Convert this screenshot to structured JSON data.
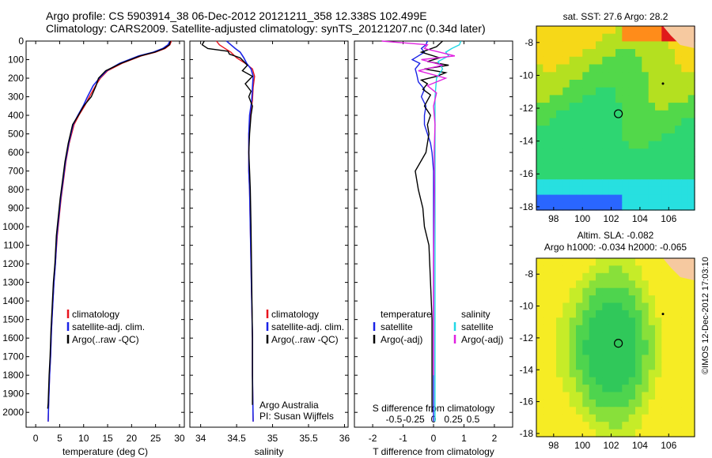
{
  "header": {
    "title_line1": "Argo profile: CS 5903914_38 06-Dec-2012 20121211_358 12.338S 102.499E",
    "title_line2": "Climatology: CARS2009. Satellite-adjusted climatology: synTS_20121207.nc (0.34d later)"
  },
  "colors": {
    "climatology": "#e8141e",
    "satellite": "#1a23e6",
    "argo": "#000000",
    "salinity_satellite": "#22d8e6",
    "salinity_argo": "#e020e0"
  },
  "chart_data": [
    {
      "type": "line",
      "panel": "temperature",
      "xlabel": "temperature (deg C)",
      "ylabel": "",
      "xlim": [
        -2,
        31
      ],
      "ylim": [
        2080,
        0
      ],
      "xticks": [
        0,
        5,
        10,
        15,
        20,
        25,
        30
      ],
      "yticks": [
        0,
        100,
        200,
        300,
        400,
        500,
        600,
        700,
        800,
        900,
        1000,
        1100,
        1200,
        1300,
        1400,
        1500,
        1600,
        1700,
        1800,
        1900,
        2000
      ],
      "legend": [
        "climatology",
        "satellite-adj. clim.",
        "Argo(..raw -QC)"
      ],
      "legend_position": "lower-center",
      "series": [
        {
          "name": "climatology",
          "x": [
            28.3,
            28.0,
            27.0,
            25.0,
            22.0,
            18.0,
            15.0,
            13.5,
            12.5,
            11.2,
            10.2,
            9.0,
            8.0,
            7.0,
            6.3,
            5.8,
            5.3,
            4.9,
            4.5,
            4.1,
            3.8,
            3.5,
            3.3,
            3.1,
            2.9,
            2.7,
            2.6
          ],
          "y": [
            0,
            20,
            40,
            60,
            80,
            120,
            160,
            200,
            240,
            300,
            350,
            400,
            450,
            550,
            650,
            750,
            850,
            950,
            1050,
            1200,
            1300,
            1450,
            1550,
            1700,
            1800,
            1950,
            2050
          ]
        },
        {
          "name": "satellite-adj. clim.",
          "x": [
            28.0,
            27.6,
            26.5,
            24.5,
            21.5,
            17.5,
            14.8,
            13.3,
            12.0,
            10.8,
            9.9,
            8.8,
            7.8,
            6.9,
            6.2,
            5.7,
            5.2,
            4.8,
            4.4,
            4.1,
            3.8,
            3.5,
            3.3,
            3.1,
            2.9,
            2.7,
            2.6
          ],
          "y": [
            0,
            20,
            40,
            60,
            80,
            120,
            160,
            200,
            240,
            300,
            350,
            400,
            450,
            550,
            650,
            750,
            850,
            950,
            1050,
            1200,
            1300,
            1450,
            1550,
            1700,
            1800,
            1950,
            2050
          ]
        },
        {
          "name": "Argo(..raw -QC)",
          "x": [
            28.1,
            27.9,
            26.8,
            24.8,
            21.8,
            17.8,
            14.6,
            13.1,
            12.6,
            11.6,
            10.0,
            8.9,
            7.7,
            6.8,
            6.1,
            5.6,
            5.1,
            4.7,
            4.3,
            4.0,
            3.7,
            3.4,
            3.2,
            3.0,
            2.8,
            2.6,
            2.5
          ],
          "y": [
            0,
            20,
            40,
            60,
            80,
            120,
            160,
            200,
            240,
            300,
            350,
            400,
            450,
            550,
            650,
            750,
            850,
            950,
            1050,
            1200,
            1300,
            1450,
            1550,
            1700,
            1800,
            1950,
            1980
          ]
        }
      ]
    },
    {
      "type": "line",
      "panel": "salinity",
      "xlabel": "salinity",
      "xlim": [
        33.85,
        36.05
      ],
      "ylim": [
        2080,
        0
      ],
      "xticks": [
        34,
        34.5,
        35,
        35.5,
        36
      ],
      "legend": [
        "climatology",
        "satellite-adj. clim.",
        "Argo(..raw -QC)"
      ],
      "legend_position": "lower-center",
      "annotation_line1": "Argo Australia",
      "annotation_line2": "PI: Susan Wijffels",
      "series": [
        {
          "name": "climatology",
          "x": [
            34.22,
            34.26,
            34.34,
            34.42,
            34.5,
            34.62,
            34.72,
            34.75,
            34.73,
            34.72,
            34.69,
            34.67,
            34.67,
            34.67,
            34.68,
            34.69,
            34.7,
            34.71,
            34.72,
            34.72,
            34.73
          ],
          "y": [
            0,
            20,
            40,
            60,
            90,
            120,
            150,
            190,
            250,
            320,
            400,
            500,
            600,
            700,
            800,
            1000,
            1200,
            1400,
            1600,
            1800,
            2050
          ]
        },
        {
          "name": "satellite-adj. clim.",
          "x": [
            34.36,
            34.42,
            34.48,
            34.55,
            34.6,
            34.64,
            34.7,
            34.73,
            34.72,
            34.71,
            34.68,
            34.67,
            34.67,
            34.67,
            34.68,
            34.69,
            34.7,
            34.71,
            34.72,
            34.72,
            34.73
          ],
          "y": [
            0,
            20,
            40,
            60,
            90,
            120,
            150,
            190,
            250,
            320,
            400,
            500,
            600,
            700,
            800,
            1000,
            1200,
            1400,
            1600,
            1800,
            2050
          ]
        },
        {
          "name": "Argo(..raw -QC)",
          "x": [
            34.05,
            34.02,
            34.1,
            34.38,
            34.4,
            34.55,
            34.6,
            34.65,
            34.58,
            34.72,
            34.62,
            34.7,
            34.67,
            34.72,
            34.7,
            34.68,
            34.67,
            34.68,
            34.69,
            34.7,
            34.71,
            34.72,
            34.72
          ],
          "y": [
            0,
            20,
            40,
            55,
            70,
            90,
            110,
            130,
            160,
            190,
            230,
            270,
            300,
            350,
            400,
            500,
            600,
            700,
            800,
            1000,
            1300,
            1600,
            1960
          ]
        }
      ]
    },
    {
      "type": "line",
      "panel": "difference",
      "xlabel": "T difference from climatology",
      "xlabel_top": "S difference from climatology",
      "xlim": [
        -2.6,
        2.6
      ],
      "ylim": [
        2080,
        0
      ],
      "xticks": [
        -2,
        -1,
        0,
        1,
        2
      ],
      "xtick_labels": [
        "-2",
        "-1",
        "0",
        "1",
        "2"
      ],
      "s_xticks": [
        -0.5,
        -0.25,
        0,
        0.25,
        0.5
      ],
      "s_xtick_labels": [
        "-0.5",
        "-0.25",
        "0",
        "0.25",
        "0.5"
      ],
      "legend_header_left": "temperature",
      "legend_header_right": "salinity",
      "legend": [
        "satellite",
        "Argo(-adj)",
        "satellite",
        "Argo(-adj)"
      ],
      "legend_position": "lower-center",
      "series": [
        {
          "name": "satellite",
          "quantity": "temperature",
          "x": [
            -0.2,
            -0.25,
            -0.4,
            -0.3,
            -0.5,
            -0.7,
            -0.45,
            -0.6,
            -0.55,
            -0.5,
            -0.3,
            -0.4,
            -0.25,
            -0.3,
            -0.3,
            -0.2,
            -0.1,
            -0.05,
            0,
            0,
            0
          ],
          "y": [
            0,
            20,
            40,
            60,
            80,
            100,
            120,
            150,
            180,
            220,
            260,
            300,
            350,
            400,
            450,
            500,
            550,
            600,
            700,
            900,
            2050
          ]
        },
        {
          "name": "Argo(-adj)",
          "quantity": "temperature",
          "x": [
            0.3,
            0.1,
            -0.4,
            0.2,
            -0.2,
            0.5,
            -0.3,
            0.4,
            0.1,
            -0.4,
            -0.2,
            -0.35,
            -0.1,
            -0.2,
            -0.3,
            -0.1,
            -0.2,
            -0.15,
            -0.25,
            -0.6,
            -0.5,
            -0.35,
            -0.3,
            -0.15,
            -0.1,
            -0.05,
            -0.05,
            -0.05
          ],
          "y": [
            0,
            30,
            60,
            90,
            110,
            130,
            150,
            170,
            190,
            210,
            230,
            260,
            290,
            320,
            350,
            400,
            450,
            500,
            600,
            700,
            800,
            900,
            1000,
            1100,
            1300,
            1500,
            1700,
            2000
          ]
        },
        {
          "name": "satellite",
          "quantity": "salinity",
          "x": [
            0.9,
            0.85,
            0.6,
            0.4,
            0.5,
            0.15,
            0.3,
            0.1,
            0.05,
            0.05,
            0.05,
            0.05
          ],
          "y": [
            0,
            20,
            40,
            60,
            80,
            110,
            150,
            200,
            300,
            500,
            1000,
            2050
          ]
        },
        {
          "name": "Argo(-adj)",
          "quantity": "salinity",
          "x": [
            -1.7,
            -0.2,
            -0.3,
            0.2,
            0.7,
            -0.4,
            0.3,
            -0.5,
            0.4,
            -0.2,
            0.1,
            0.0,
            0.05,
            0.02,
            0.03,
            0.0,
            0.0
          ],
          "y": [
            0,
            20,
            40,
            60,
            80,
            100,
            130,
            160,
            200,
            240,
            280,
            350,
            450,
            600,
            800,
            1200,
            1800
          ]
        }
      ]
    },
    {
      "type": "heatmap",
      "panel": "sst_map",
      "title": "sat. SST: 27.6  Argo: 28.2",
      "xlim": [
        96.8,
        107.8
      ],
      "ylim": [
        -18.2,
        -7.0
      ],
      "xticks": [
        98,
        100,
        102,
        104,
        106
      ],
      "yticks": [
        -8,
        -10,
        -12,
        -14,
        -16,
        -18
      ],
      "argo_position": {
        "lon": 102.499,
        "lat": -12.338
      }
    },
    {
      "type": "heatmap",
      "panel": "sla_map",
      "title_line1": "Altim. SLA: -0.082",
      "title_line2": "Argo h1000: -0.034 h2000: -0.065",
      "xlim": [
        96.8,
        107.8
      ],
      "ylim": [
        -18.2,
        -7.0
      ],
      "xticks": [
        98,
        100,
        102,
        104,
        106
      ],
      "yticks": [
        -8,
        -10,
        -12,
        -14,
        -16,
        -18
      ],
      "argo_position": {
        "lon": 102.499,
        "lat": -12.338
      }
    }
  ],
  "footer": {
    "watermark": "©IMOS 12-Dec-2012 17:03:10"
  }
}
